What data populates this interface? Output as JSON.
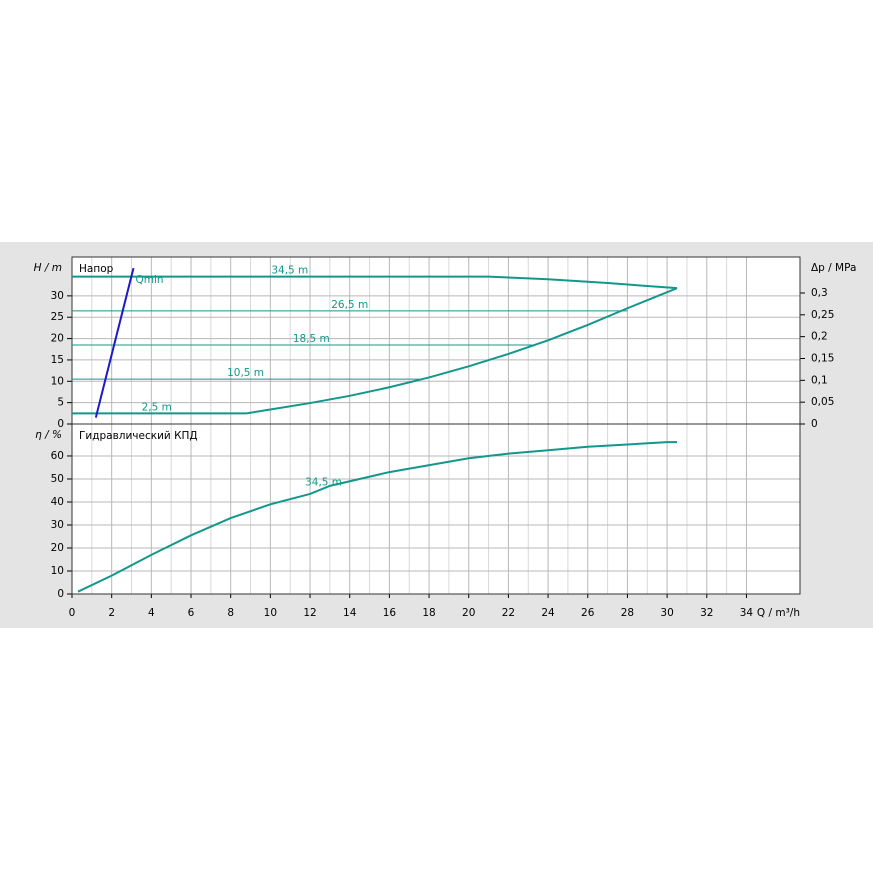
{
  "chart_data": [
    {
      "type": "line",
      "title": "Напор",
      "y_label": "H / m",
      "y2_label": "Δp / MPa",
      "xlim": [
        0,
        36.7
      ],
      "xticks": [
        0,
        2,
        4,
        6,
        8,
        10,
        12,
        14,
        16,
        18,
        20,
        22,
        24,
        26,
        28,
        30,
        32,
        34
      ],
      "ylim": [
        0,
        39.1
      ],
      "yticks": [
        0,
        5,
        10,
        15,
        20,
        25,
        30
      ],
      "y2lim": [
        0,
        0.3824
      ],
      "y2ticks": [
        0,
        {
          "value": 0.05,
          "label": "0,05"
        },
        {
          "value": 0.1,
          "label": "0,1"
        },
        {
          "value": 0.15,
          "label": "0,15"
        },
        {
          "value": 0.2,
          "label": "0,2"
        },
        {
          "value": 0.25,
          "label": "0,25"
        },
        {
          "value": 0.3,
          "label": "0,3"
        }
      ],
      "grid": true,
      "series": [
        {
          "name": "34,5 m",
          "color": "#12988a",
          "x": [
            0,
            21,
            24,
            27,
            30.5
          ],
          "values": [
            34.5,
            34.5,
            33.9,
            33,
            31.8
          ]
        },
        {
          "name": "26,5 m",
          "color": "#12988a",
          "x": [
            0,
            28
          ],
          "values": [
            26.5,
            26.5
          ]
        },
        {
          "name": "18,5 m",
          "color": "#12988a",
          "x": [
            0,
            23.2
          ],
          "values": [
            18.5,
            18.5
          ]
        },
        {
          "name": "10,5 m",
          "color": "#12988a",
          "x": [
            0,
            17.5
          ],
          "values": [
            10.5,
            10.5
          ]
        },
        {
          "name": "2,5 m",
          "color": "#12988a",
          "x": [
            0,
            8.8,
            10,
            12,
            14,
            16,
            18,
            20,
            22,
            24,
            26,
            28,
            30.5
          ],
          "values": [
            2.5,
            2.5,
            3.4,
            4.9,
            6.6,
            8.6,
            10.9,
            13.5,
            16.4,
            19.6,
            23.2,
            27.1,
            31.8
          ]
        },
        {
          "name": "Qmin",
          "color": "#1a1acc",
          "x": [
            1.2,
            3.1
          ],
          "values": [
            1.5,
            36.5
          ]
        }
      ]
    },
    {
      "type": "line",
      "title": "Гидравлический КПД",
      "y_label": "η / %",
      "x_label": "Q / m³/h",
      "xlim": [
        0,
        36.7
      ],
      "xticks": [
        0,
        2,
        4,
        6,
        8,
        10,
        12,
        14,
        16,
        18,
        20,
        22,
        24,
        26,
        28,
        30,
        32,
        34
      ],
      "ylim": [
        0,
        73.9
      ],
      "yticks": [
        0,
        10,
        20,
        30,
        40,
        50,
        60
      ],
      "grid": true,
      "series": [
        {
          "name": "34,5 m",
          "color": "#12988a",
          "x": [
            0.3,
            2,
            4,
            6,
            8,
            10,
            12,
            13,
            16,
            20,
            22,
            24,
            26,
            28,
            30,
            30.5
          ],
          "values": [
            1,
            8,
            17,
            25.5,
            33,
            39,
            43.5,
            47,
            53,
            59,
            61,
            62.5,
            64,
            65,
            66,
            66
          ]
        }
      ]
    }
  ]
}
